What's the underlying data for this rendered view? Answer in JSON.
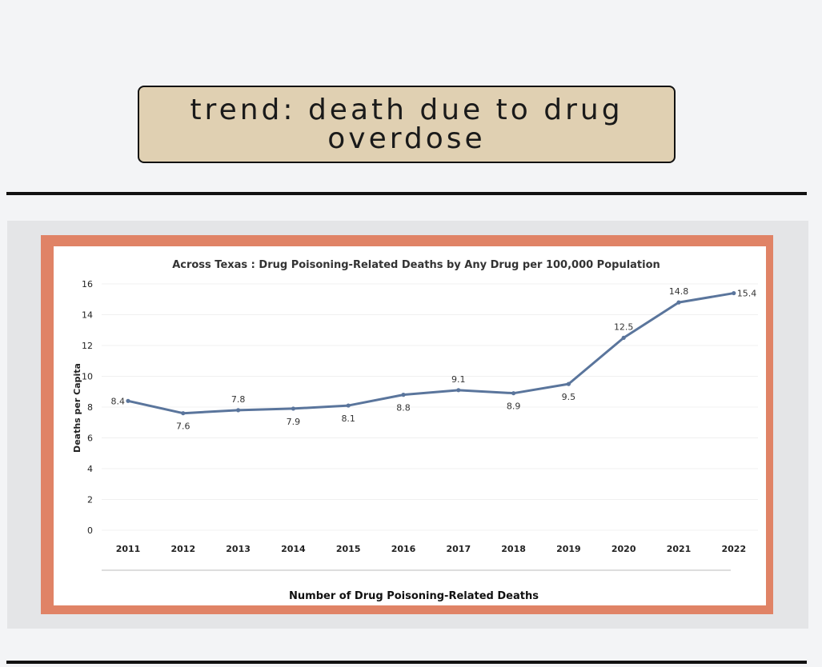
{
  "header": {
    "title": "trend: death due to drug overdose"
  },
  "chart_data": {
    "type": "line",
    "title": "Across Texas : Drug Poisoning-Related Deaths by Any Drug per 100,000 Population",
    "xlabel": "Number of Drug Poisoning-Related Deaths",
    "ylabel": "Deaths per Capita",
    "ylim": [
      0,
      16
    ],
    "yticks": [
      "0",
      "2",
      "4",
      "6",
      "8",
      "10",
      "12",
      "14",
      "16"
    ],
    "categories": [
      "2011",
      "2012",
      "2013",
      "2014",
      "2015",
      "2016",
      "2017",
      "2018",
      "2019",
      "2020",
      "2021",
      "2022"
    ],
    "values": [
      8.4,
      7.6,
      7.8,
      7.9,
      8.1,
      8.8,
      9.1,
      8.9,
      9.5,
      12.5,
      14.8,
      15.4
    ],
    "data_labels": [
      "8.4",
      "7.6",
      "7.8",
      "7.9",
      "8.1",
      "8.8",
      "9.1",
      "8.9",
      "9.5",
      "12.5",
      "14.8",
      "15.4"
    ],
    "label_positions": [
      "left",
      "below",
      "above",
      "below",
      "below",
      "below",
      "above",
      "below",
      "below",
      "above",
      "above",
      "right"
    ],
    "grid": true,
    "line_color": "#5a759c"
  },
  "colors": {
    "frame": "#e08366",
    "title_box": "#e0d0b2"
  }
}
